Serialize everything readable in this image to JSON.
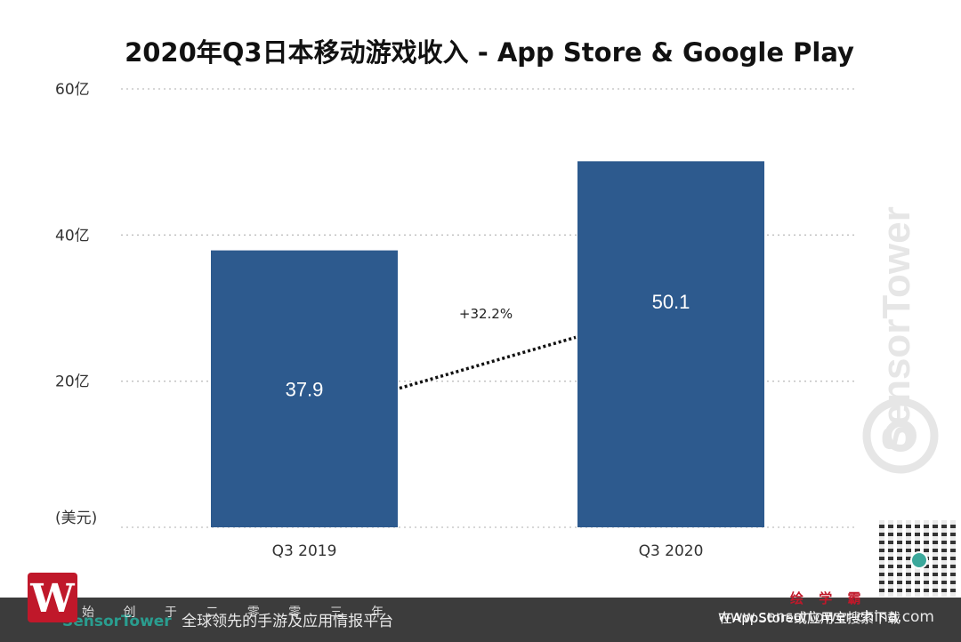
{
  "chart_data": {
    "type": "bar",
    "title": "2020年Q3日本移动游戏收入 - App Store & Google Play",
    "categories": [
      "Q3  2019",
      "Q3 2020"
    ],
    "values": [
      37.9,
      50.1
    ],
    "value_labels": [
      "37.9",
      "50.1"
    ],
    "ylim": [
      0,
      60
    ],
    "yticks": [
      {
        "value": 60,
        "label": "60亿"
      },
      {
        "value": 40,
        "label": "40亿"
      },
      {
        "value": 20,
        "label": "20亿"
      }
    ],
    "unit_label": "(美元)",
    "growth_annotation": "+32.2%",
    "grid": "dotted horizontal",
    "colors": {
      "bar": "#2d5a8e",
      "bar_label": "#ffffff"
    }
  },
  "watermark": {
    "brand": "SensorTower"
  },
  "footer": {
    "brand": "SensorTower",
    "tagline": "全球领先的手游及应用情报平台",
    "right_text": "www.sensortower-china.com",
    "overlay_chars": "始 创 于 二 零 零 三 年",
    "overlay_right": "在AppStore或应用宝搜索下载",
    "red_text": "绘 学 霸",
    "badge_letter": "W"
  }
}
